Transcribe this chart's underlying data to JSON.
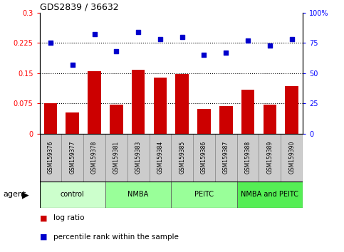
{
  "title": "GDS2839 / 36632",
  "samples": [
    "GSM159376",
    "GSM159377",
    "GSM159378",
    "GSM159381",
    "GSM159383",
    "GSM159384",
    "GSM159385",
    "GSM159386",
    "GSM159387",
    "GSM159388",
    "GSM159389",
    "GSM159390"
  ],
  "log_ratio": [
    0.075,
    0.052,
    0.155,
    0.072,
    0.158,
    0.138,
    0.147,
    0.062,
    0.068,
    0.108,
    0.072,
    0.118
  ],
  "percentile_rank": [
    75,
    57,
    82,
    68,
    84,
    78,
    80,
    65,
    67,
    77,
    73,
    78
  ],
  "groups": [
    {
      "label": "control",
      "start": 0,
      "end": 3,
      "color": "#ccffcc"
    },
    {
      "label": "NMBA",
      "start": 3,
      "end": 6,
      "color": "#99ff99"
    },
    {
      "label": "PEITC",
      "start": 6,
      "end": 9,
      "color": "#99ff99"
    },
    {
      "label": "NMBA and PEITC",
      "start": 9,
      "end": 12,
      "color": "#55ee55"
    }
  ],
  "bar_color": "#cc0000",
  "dot_color": "#0000cc",
  "ylim_left": [
    0,
    0.3
  ],
  "ylim_right": [
    0,
    100
  ],
  "yticks_left": [
    0,
    0.075,
    0.15,
    0.225,
    0.3
  ],
  "ytick_labels_left": [
    "0",
    "0.075",
    "0.15",
    "0.225",
    "0.3"
  ],
  "yticks_right": [
    0,
    25,
    50,
    75,
    100
  ],
  "ytick_labels_right": [
    "0",
    "25",
    "50",
    "75",
    "100%"
  ],
  "hlines": [
    0.075,
    0.15,
    0.225
  ],
  "legend_items": [
    {
      "label": "log ratio",
      "color": "#cc0000"
    },
    {
      "label": "percentile rank within the sample",
      "color": "#0000cc"
    }
  ],
  "sample_box_color": "#cccccc",
  "agent_label": "agent"
}
